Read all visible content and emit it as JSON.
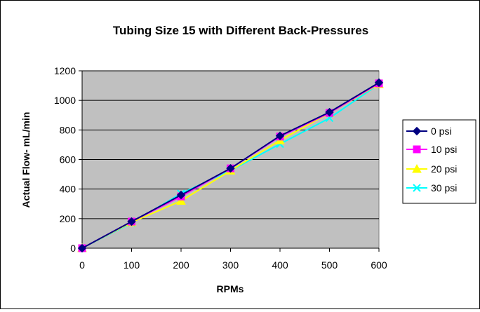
{
  "chart_data": {
    "type": "line",
    "title": "Tubing Size 15 with Different Back-Pressures",
    "xlabel": "RPMs",
    "ylabel": "Actual Flow- mL/min",
    "x": [
      0,
      100,
      200,
      300,
      400,
      500,
      600
    ],
    "xlim": [
      0,
      600
    ],
    "ylim": [
      0,
      1200
    ],
    "x_ticks": [
      "0",
      "100",
      "200",
      "300",
      "400",
      "500",
      "600"
    ],
    "y_ticks": [
      "0",
      "200",
      "400",
      "600",
      "800",
      "1000",
      "1200"
    ],
    "grid": "horizontal",
    "plot_background": "#c0c0c0",
    "legend_position": "right",
    "series": [
      {
        "name": "0 psi",
        "color": "#000080",
        "marker": "diamond",
        "values": [
          0,
          180,
          360,
          540,
          760,
          920,
          1120
        ]
      },
      {
        "name": "10 psi",
        "color": "#ff00ff",
        "marker": "square",
        "values": [
          0,
          180,
          350,
          540,
          755,
          915,
          1115
        ]
      },
      {
        "name": "20 psi",
        "color": "#ffff00",
        "marker": "triangle",
        "values": [
          0,
          175,
          320,
          525,
          730,
          915,
          1110
        ]
      },
      {
        "name": "30 psi",
        "color": "#00ffff",
        "marker": "x",
        "values": [
          0,
          170,
          370,
          525,
          705,
          880,
          1110
        ]
      }
    ]
  }
}
